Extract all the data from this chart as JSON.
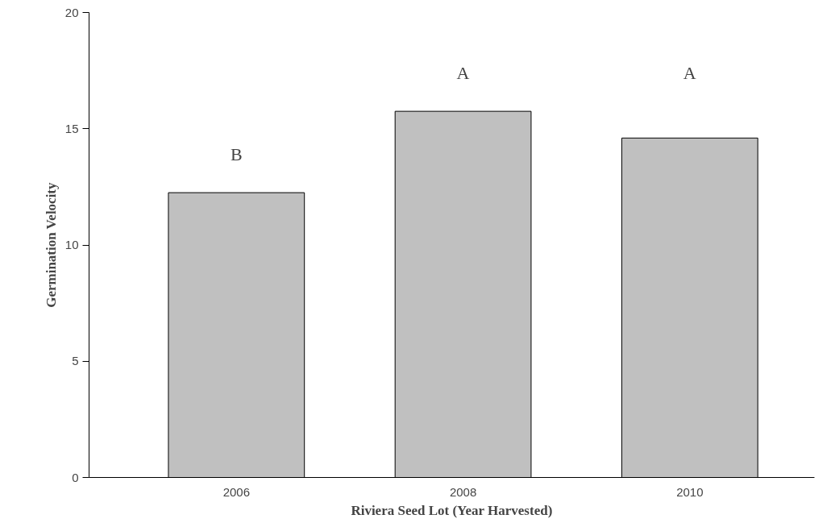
{
  "chart_data": {
    "type": "bar",
    "xlabel": "Riviera Seed Lot (Year Harvested)",
    "ylabel": "Germination Velocity",
    "categories": [
      "2006",
      "2008",
      "2010"
    ],
    "values": [
      12.25,
      15.75,
      14.6
    ],
    "color": "#c0c0c0",
    "ylim": [
      0,
      20
    ],
    "yticks": [
      0,
      5,
      10,
      15,
      20
    ],
    "grid": false,
    "annotations": [
      "B",
      "A",
      "A"
    ]
  }
}
